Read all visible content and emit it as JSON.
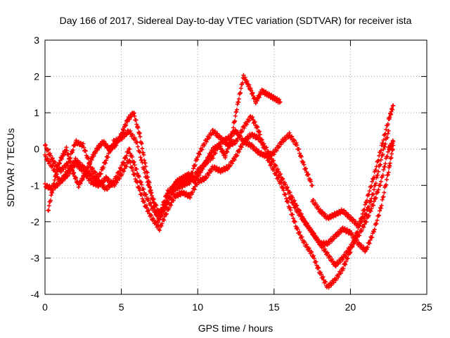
{
  "chart_data": {
    "type": "scatter",
    "title": "Day 166 of 2017, Sidereal Day-to-day VTEC variation (SDTVAR) for receiver ista",
    "xlabel": "GPS time / hours",
    "ylabel": "SDTVAR / TECUs",
    "xlim": [
      0,
      25
    ],
    "ylim": [
      -4,
      3
    ],
    "xticks": [
      "0",
      "5",
      "10",
      "15",
      "20",
      "25"
    ],
    "yticks": [
      "-4",
      "-3",
      "-2",
      "-1",
      "0",
      "1",
      "2",
      "3"
    ],
    "grid": true,
    "marker": "plus",
    "color": "#ff0000",
    "series": [
      {
        "x": [
          0.0,
          0.5,
          1.0,
          1.5,
          2.0,
          2.5,
          3.0,
          3.5,
          4.0,
          4.5,
          5.0,
          5.5,
          6.0,
          6.5,
          7.0,
          7.5,
          8.0,
          8.5,
          9.0,
          9.5,
          10.0,
          10.5,
          11.0,
          11.5,
          12.0,
          12.5,
          13.0,
          13.5,
          14.0,
          14.5,
          15.0,
          15.5,
          16.0,
          16.5,
          17.0,
          17.5,
          18.0,
          18.5,
          19.0,
          19.5,
          20.0,
          20.5,
          21.0,
          21.5,
          22.0,
          22.5,
          22.8
        ],
        "y": [
          0.1,
          -0.3,
          -0.6,
          -0.4,
          0.2,
          0.1,
          -0.5,
          -0.8,
          -0.3,
          0.2,
          0.3,
          0.5,
          0.2,
          -0.6,
          -1.3,
          -1.8,
          -1.2,
          -1.0,
          -0.9,
          -0.8,
          -0.2,
          0.2,
          0.5,
          0.3,
          0.1,
          0.2,
          0.6,
          0.9,
          0.5,
          -0.2,
          -0.6,
          -1.0,
          -1.6,
          -2.2,
          -2.6,
          -2.9,
          -3.4,
          -3.8,
          -3.6,
          -3.3,
          -2.8,
          -2.2,
          -1.5,
          -0.8,
          0.0,
          0.8,
          1.2
        ]
      },
      {
        "x": [
          0.0,
          0.5,
          1.0,
          1.5,
          2.0,
          2.5,
          3.0,
          3.5,
          4.0,
          4.5,
          5.0,
          5.5,
          6.0,
          6.5,
          7.0,
          7.5,
          8.0,
          8.5,
          9.0,
          9.5,
          10.0,
          10.5,
          11.0,
          11.5,
          12.0,
          12.5,
          13.0,
          13.5,
          14.0,
          14.5,
          15.0,
          15.5,
          16.0,
          16.5,
          17.0,
          17.5,
          18.0,
          18.5,
          19.0,
          19.5,
          20.0,
          20.5,
          21.0,
          21.5,
          22.0,
          22.5,
          22.8
        ],
        "y": [
          -0.2,
          -0.5,
          -0.9,
          -0.7,
          -0.4,
          -0.6,
          -0.9,
          -1.0,
          -0.8,
          -1.0,
          -0.7,
          -0.3,
          -0.9,
          -1.5,
          -1.9,
          -2.2,
          -1.7,
          -1.3,
          -1.2,
          -1.3,
          -0.9,
          -0.8,
          -0.5,
          -0.6,
          -0.5,
          -0.2,
          0.2,
          0.4,
          0.3,
          0.0,
          -0.4,
          -0.8,
          -1.2,
          -1.6,
          -2.0,
          -2.3,
          -2.6,
          -2.9,
          -3.2,
          -3.0,
          -2.7,
          -2.4,
          -2.0,
          -1.5,
          -0.9,
          0.0,
          0.2
        ]
      },
      {
        "x": [
          0.0,
          0.5,
          1.0,
          1.5,
          2.0,
          2.5,
          3.0,
          3.5,
          4.0,
          4.5,
          5.0,
          5.5,
          6.0,
          6.5,
          7.0,
          7.5,
          8.0,
          8.5,
          9.0,
          9.5,
          10.0,
          10.5,
          11.0,
          11.5,
          12.0,
          12.5,
          13.0,
          13.5,
          14.0,
          14.5,
          15.0,
          15.5,
          16.0,
          16.5,
          17.0,
          17.5
        ],
        "y": [
          -1.0,
          -1.1,
          -0.9,
          -0.6,
          -0.3,
          -0.5,
          -0.7,
          -0.9,
          -1.1,
          -0.9,
          -0.5,
          0.0,
          -0.6,
          -1.2,
          -1.6,
          -1.9,
          -1.5,
          -1.1,
          -1.0,
          -0.9,
          -0.6,
          -0.4,
          -0.2,
          0.2,
          0.3,
          0.5,
          0.2,
          0.1,
          -0.1,
          -0.2,
          -0.1,
          0.2,
          0.4,
          0.1,
          -0.5,
          -1.0
        ]
      },
      {
        "x": [
          0.2,
          0.6,
          1.0,
          1.4,
          1.8,
          2.2,
          2.6,
          3.0,
          3.4,
          3.8,
          4.2,
          4.6,
          5.0,
          5.4,
          5.8,
          6.2,
          6.6,
          7.0,
          7.4,
          7.8,
          8.2,
          8.6,
          9.0,
          9.4,
          9.8,
          10.2,
          10.6,
          11.0,
          11.4,
          11.8,
          12.2,
          12.6,
          13.0,
          13.4,
          13.8,
          14.2,
          14.6,
          15.0,
          15.4
        ],
        "y": [
          -1.7,
          -0.9,
          -0.3,
          0.0,
          -0.6,
          -1.0,
          -0.7,
          -0.3,
          0.0,
          0.2,
          0.0,
          0.1,
          0.4,
          0.8,
          1.0,
          0.4,
          -0.5,
          -1.3,
          -2.0,
          -1.6,
          -1.2,
          -0.9,
          -0.8,
          -0.7,
          -0.9,
          -0.6,
          -0.3,
          0.0,
          0.1,
          -0.2,
          0.3,
          1.2,
          2.0,
          1.7,
          1.3,
          1.6,
          1.5,
          1.4,
          1.3
        ]
      },
      {
        "x": [
          16.0,
          16.5,
          17.0,
          17.5,
          18.0,
          18.5,
          19.0,
          19.5,
          20.0,
          20.5,
          21.0,
          21.5,
          22.0,
          22.5,
          22.8
        ],
        "y": [
          -1.3,
          -1.7,
          -2.0,
          -2.3,
          -2.6,
          -2.6,
          -2.4,
          -2.2,
          -2.3,
          -2.6,
          -2.8,
          -2.3,
          -1.6,
          -0.6,
          0.1
        ]
      },
      {
        "x": [
          17.5,
          18.0,
          18.5,
          19.0,
          19.5,
          20.0,
          20.5,
          21.0,
          21.5,
          22.0,
          22.5
        ],
        "y": [
          -1.4,
          -1.7,
          -1.9,
          -1.8,
          -1.7,
          -1.9,
          -2.1,
          -1.8,
          -1.2,
          -0.3,
          0.5
        ]
      }
    ]
  }
}
